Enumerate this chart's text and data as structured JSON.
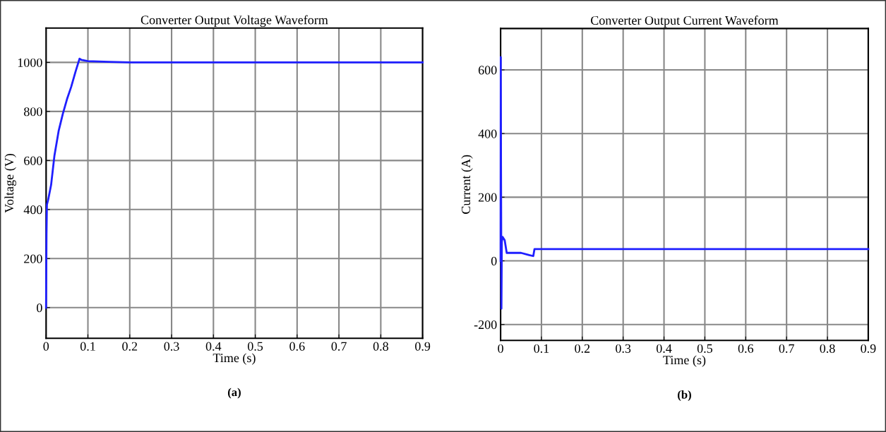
{
  "chart_data": [
    {
      "type": "line",
      "title": "Converter Output Voltage Waveform",
      "xlabel": "Time (s)",
      "ylabel": "Voltage (V)",
      "annotations": [
        "(a)"
      ],
      "x": [
        0,
        0.001,
        0.002,
        0.005,
        0.012,
        0.02,
        0.03,
        0.04,
        0.05,
        0.06,
        0.07,
        0.08,
        0.085,
        0.1,
        0.15,
        0.2,
        0.9
      ],
      "series": [
        {
          "color": "#1f1fff",
          "values": [
            0,
            300,
            420,
            440,
            500,
            620,
            720,
            790,
            850,
            900,
            960,
            1015,
            1010,
            1005,
            1002,
            1000,
            1000
          ]
        }
      ],
      "xlim": [
        0,
        0.9
      ],
      "xticks": [
        0,
        0.1,
        0.2,
        0.3,
        0.4,
        0.5,
        0.6,
        0.7,
        0.8,
        0.9
      ],
      "ylim": [
        -125,
        1140
      ],
      "yticks": [
        0,
        200,
        400,
        600,
        800,
        1000
      ],
      "grid": true
    },
    {
      "type": "line",
      "title": "Converter Output Current Waveform",
      "xlabel": "Time (s)",
      "ylabel": "Current (A)",
      "annotations": [
        "(b)"
      ],
      "x": [
        0,
        0.0005,
        0.001,
        0.002,
        0.003,
        0.005,
        0.01,
        0.015,
        0.03,
        0.05,
        0.07,
        0.08,
        0.083,
        0.9
      ],
      "series": [
        {
          "color": "#1f1fff",
          "values": [
            0,
            640,
            300,
            -150,
            60,
            75,
            65,
            25,
            25,
            25,
            18,
            15,
            37,
            37
          ]
        }
      ],
      "xlim": [
        0,
        0.9
      ],
      "xticks": [
        0,
        0.1,
        0.2,
        0.3,
        0.4,
        0.5,
        0.6,
        0.7,
        0.8,
        0.9
      ],
      "ylim": [
        -250,
        730
      ],
      "yticks": [
        -200,
        0,
        200,
        400,
        600
      ],
      "grid": true
    }
  ]
}
